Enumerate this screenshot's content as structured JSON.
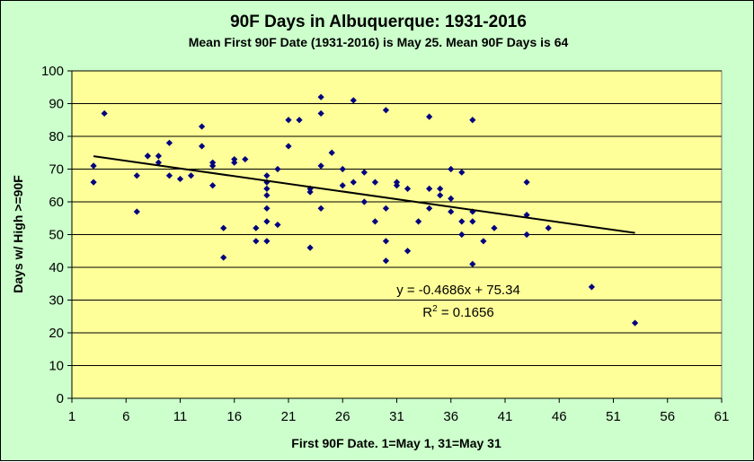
{
  "chart_data": {
    "type": "scatter",
    "title": "90F Days in Albuquerque: 1931-2016",
    "subtitle": "Mean First 90F Date (1931-2016) is May 25. Mean 90F Days is 64",
    "xlabel": "First 90F Date. 1=May 1, 31=May 31",
    "ylabel": "Days w/ High >=90F",
    "xlim": [
      1,
      61
    ],
    "ylim": [
      0,
      100
    ],
    "xticks": [
      1,
      6,
      11,
      16,
      21,
      26,
      31,
      36,
      41,
      46,
      51,
      56,
      61
    ],
    "yticks": [
      0,
      10,
      20,
      30,
      40,
      50,
      60,
      70,
      80,
      90,
      100
    ],
    "grid": "horizontal",
    "plot_background": "#ffff99",
    "chart_background": "#ccffcc",
    "marker_color": "#000080",
    "points": [
      [
        3,
        71
      ],
      [
        3,
        66
      ],
      [
        4,
        87
      ],
      [
        7,
        68
      ],
      [
        7,
        57
      ],
      [
        8,
        74
      ],
      [
        8,
        74
      ],
      [
        9,
        74
      ],
      [
        9,
        72
      ],
      [
        10,
        78
      ],
      [
        10,
        68
      ],
      [
        11,
        67
      ],
      [
        12,
        68
      ],
      [
        13,
        83
      ],
      [
        13,
        77
      ],
      [
        14,
        72
      ],
      [
        14,
        71
      ],
      [
        14,
        65
      ],
      [
        15,
        52
      ],
      [
        15,
        43
      ],
      [
        16,
        73
      ],
      [
        16,
        72
      ],
      [
        17,
        73
      ],
      [
        18,
        52
      ],
      [
        18,
        48
      ],
      [
        19,
        68
      ],
      [
        19,
        66
      ],
      [
        19,
        64
      ],
      [
        19,
        62
      ],
      [
        19,
        58
      ],
      [
        19,
        54
      ],
      [
        19,
        48
      ],
      [
        20,
        70
      ],
      [
        20,
        53
      ],
      [
        21,
        85
      ],
      [
        21,
        77
      ],
      [
        22,
        85
      ],
      [
        23,
        64
      ],
      [
        23,
        63
      ],
      [
        23,
        46
      ],
      [
        24,
        92
      ],
      [
        24,
        87
      ],
      [
        24,
        71
      ],
      [
        24,
        58
      ],
      [
        25,
        75
      ],
      [
        26,
        70
      ],
      [
        26,
        65
      ],
      [
        27,
        91
      ],
      [
        27,
        66
      ],
      [
        28,
        69
      ],
      [
        28,
        60
      ],
      [
        29,
        66
      ],
      [
        29,
        54
      ],
      [
        30,
        88
      ],
      [
        30,
        58
      ],
      [
        30,
        48
      ],
      [
        30,
        42
      ],
      [
        31,
        66
      ],
      [
        31,
        65
      ],
      [
        32,
        64
      ],
      [
        32,
        45
      ],
      [
        33,
        54
      ],
      [
        34,
        86
      ],
      [
        34,
        64
      ],
      [
        34,
        58
      ],
      [
        35,
        64
      ],
      [
        35,
        62
      ],
      [
        36,
        70
      ],
      [
        36,
        61
      ],
      [
        36,
        57
      ],
      [
        37,
        69
      ],
      [
        37,
        54
      ],
      [
        37,
        50
      ],
      [
        38,
        85
      ],
      [
        38,
        57
      ],
      [
        38,
        54
      ],
      [
        38,
        41
      ],
      [
        39,
        48
      ],
      [
        40,
        52
      ],
      [
        43,
        66
      ],
      [
        43,
        56
      ],
      [
        43,
        50
      ],
      [
        45,
        52
      ],
      [
        49,
        34
      ],
      [
        53,
        23
      ]
    ],
    "trendline": {
      "x_range": [
        3,
        53
      ],
      "slope": -0.4686,
      "intercept": 75.34,
      "equation_label": "y = -0.4686x + 75.34",
      "r2_prefix": "R",
      "r2_exp": "2",
      "r2_suffix": " = 0.1656"
    }
  }
}
